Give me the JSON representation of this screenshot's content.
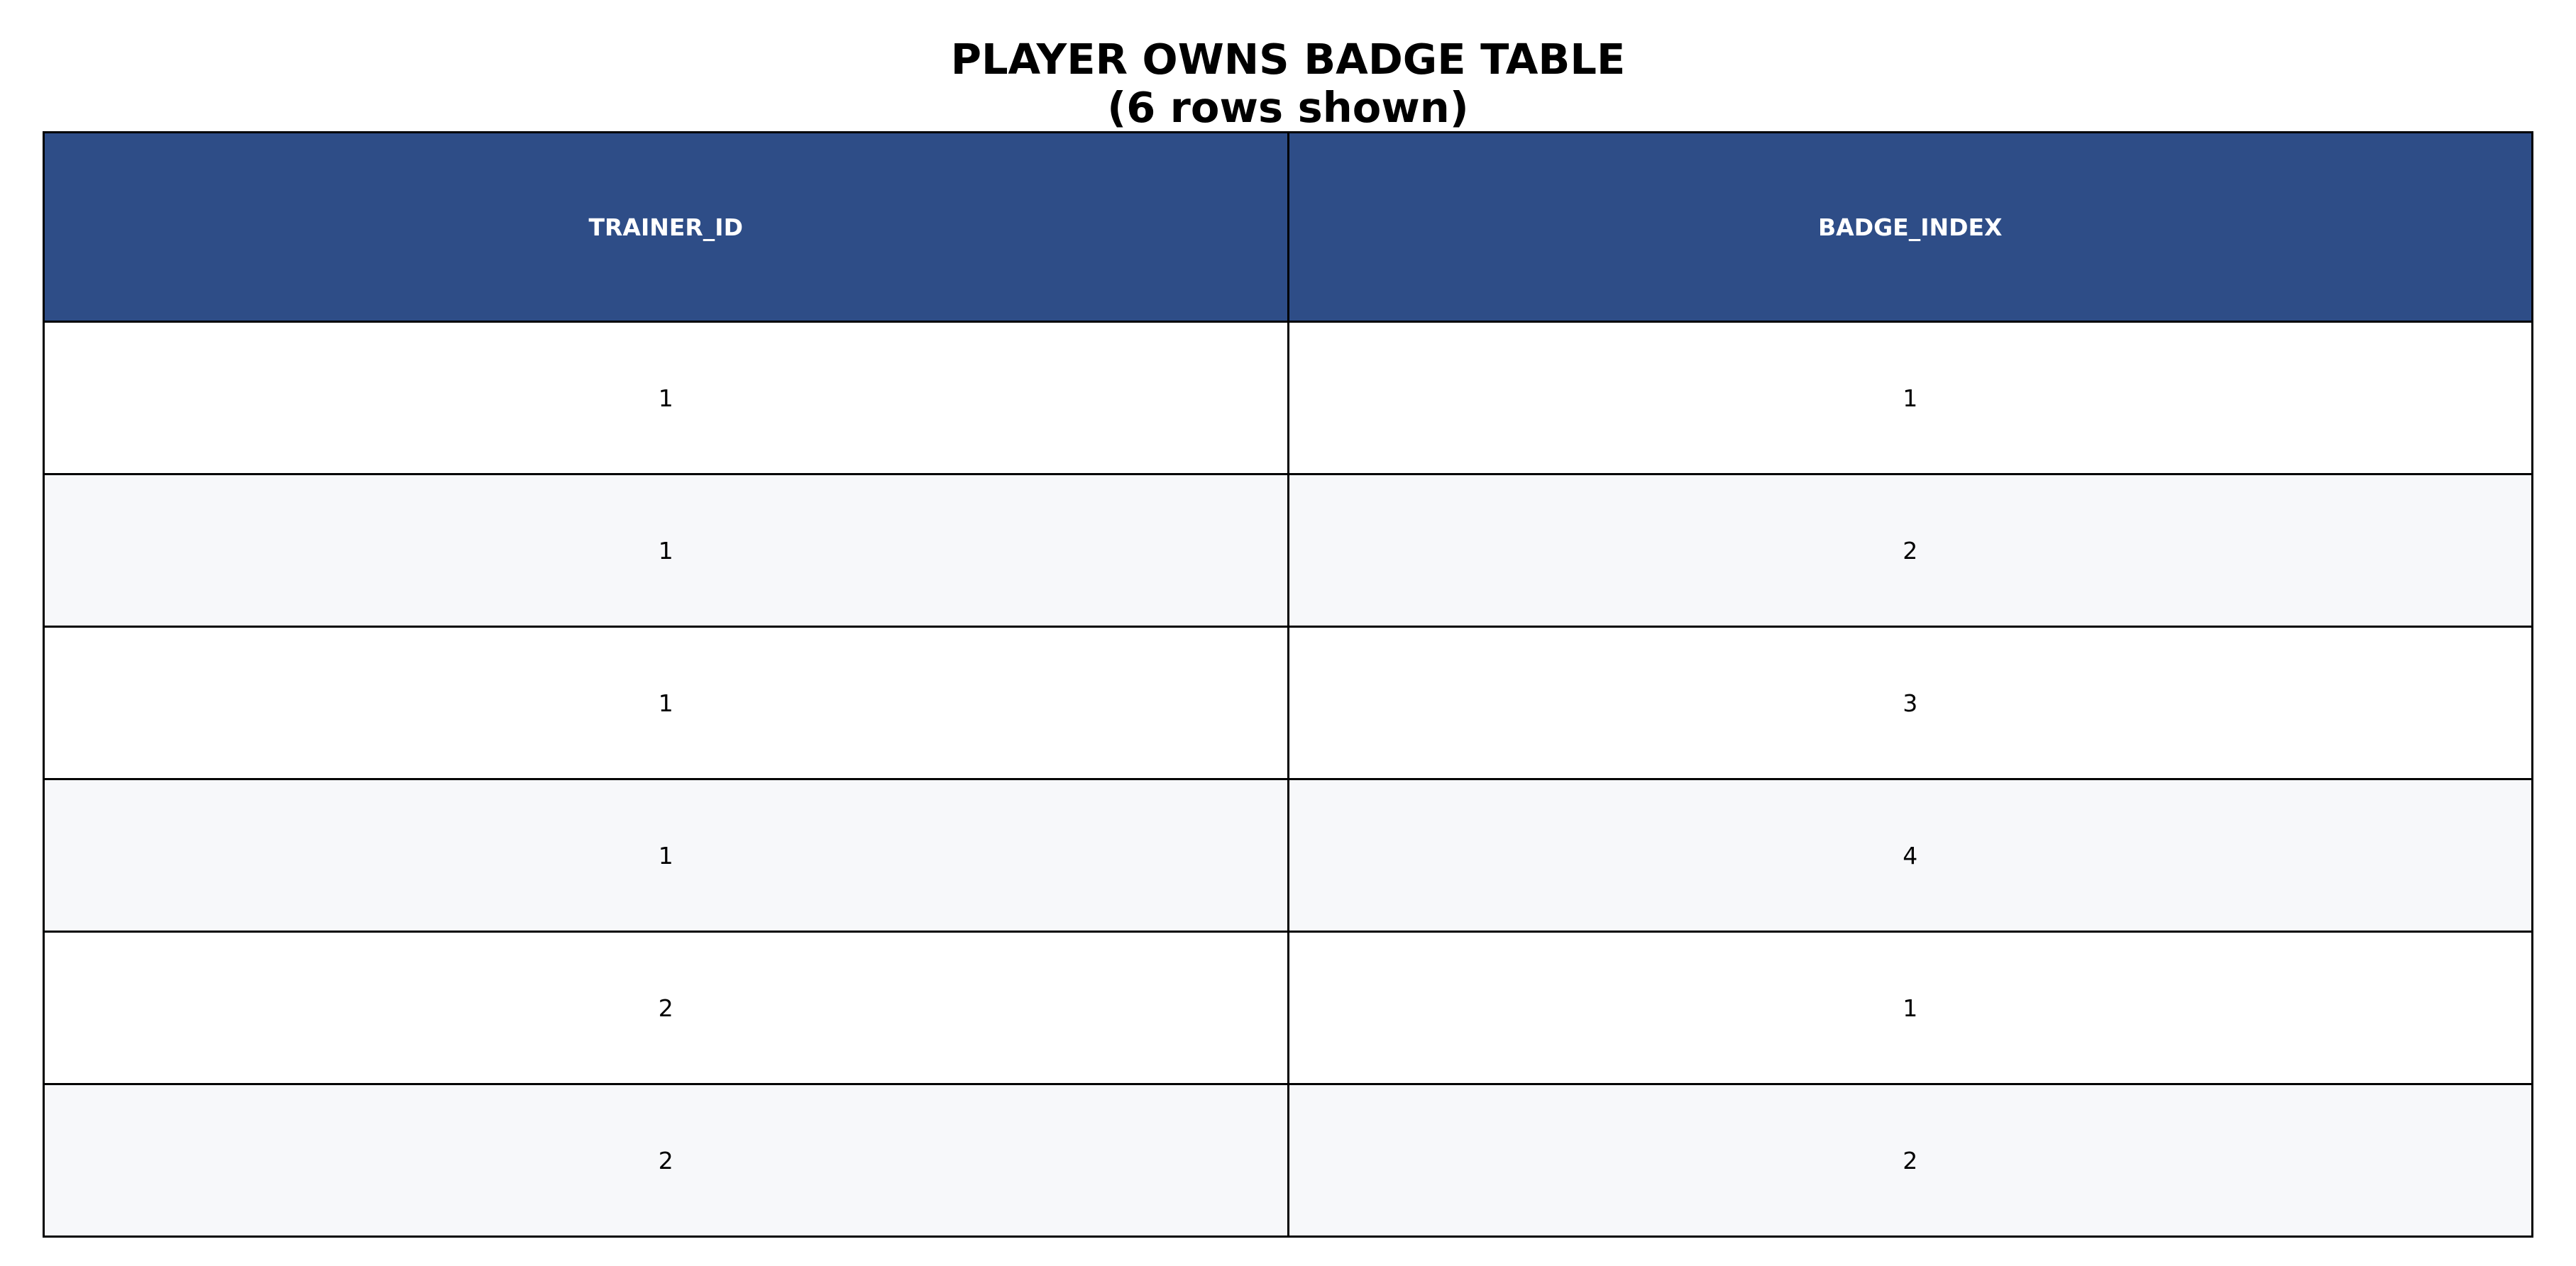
{
  "title": {
    "line1": "PLAYER OWNS BADGE TABLE",
    "line2": "(6 rows shown)"
  },
  "colors": {
    "header_bg": "#2e4d87",
    "header_text": "#ffffff",
    "row_even_bg": "#ffffff",
    "row_odd_bg": "#f7f8fa",
    "border": "#000000"
  },
  "chart_data": {
    "type": "table",
    "title": "PLAYER OWNS BADGE TABLE (6 rows shown)",
    "columns": [
      "TRAINER_ID",
      "BADGE_INDEX"
    ],
    "rows": [
      [
        "1",
        "1"
      ],
      [
        "1",
        "2"
      ],
      [
        "1",
        "3"
      ],
      [
        "1",
        "4"
      ],
      [
        "2",
        "1"
      ],
      [
        "2",
        "2"
      ]
    ]
  }
}
